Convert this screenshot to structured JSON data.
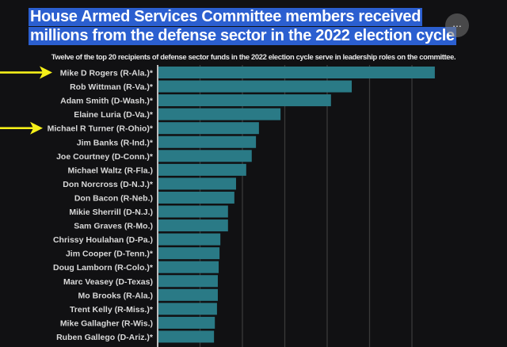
{
  "header": {
    "title_line1": "House Armed Services Committee members received",
    "title_line2": "millions from the defense sector in the 2022 election cycle",
    "subtitle": "Twelve of the top 20 recipients of defense sector funds in the 2022 election cycle serve in leadership roles on the committee.",
    "more_button": "..."
  },
  "colors": {
    "bar": "#2a7a86",
    "title_highlight": "#2b5fd0",
    "arrow": "#f5f019",
    "background": "#111113"
  },
  "annotations": {
    "arrows_point_to": [
      "Mike D Rogers (R-Ala.)*",
      "Michael R Turner (R-Ohio)*"
    ]
  },
  "chart_data": {
    "type": "bar",
    "orientation": "horizontal",
    "title": "House Armed Services Committee members received millions from the defense sector in the 2022 election cycle",
    "subtitle": "Twelve of the top 20 recipients of defense sector funds in the 2022 election cycle serve in leadership roles on the committee.",
    "xlabel": "",
    "ylabel": "",
    "value_units": "relative (gridline intervals; no tick labels visible)",
    "xlim": [
      0,
      8
    ],
    "gridlines": [
      1,
      2,
      3,
      4,
      5,
      6
    ],
    "grid": true,
    "categories": [
      "Mike D Rogers (R-Ala.)*",
      "Rob Wittman (R-Va.)*",
      "Adam Smith (D-Wash.)*",
      "Elaine Luria (D-Va.)*",
      "Michael R Turner (R-Ohio)*",
      "Jim Banks (R-Ind.)*",
      "Joe Courtney (D-Conn.)*",
      "Michael Waltz (R-Fla.)",
      "Don Norcross (D-N.J.)*",
      "Don Bacon (R-Neb.)",
      "Mikie Sherrill (D-N.J.)",
      "Sam Graves (R-Mo.)",
      "Chrissy Houlahan (D-Pa.)",
      "Jim Cooper (D-Tenn.)*",
      "Doug Lamborn (R-Colo.)*",
      "Marc Veasey (D-Texas)",
      "Mo Brooks (R-Ala.)",
      "Trent Kelly (R-Miss.)*",
      "Mike Gallagher (R-Wis.)",
      "Ruben Gallego (D-Ariz.)*"
    ],
    "values": [
      6.54,
      4.58,
      4.09,
      2.9,
      2.39,
      2.32,
      2.22,
      2.09,
      1.85,
      1.81,
      1.66,
      1.66,
      1.48,
      1.46,
      1.44,
      1.42,
      1.42,
      1.4,
      1.35,
      1.33
    ]
  }
}
